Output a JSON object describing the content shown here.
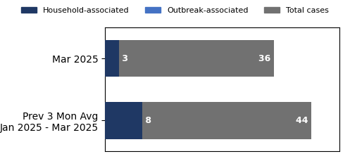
{
  "chart_data": {
    "type": "bar",
    "orientation": "horizontal",
    "stacked": false,
    "data_labels": true,
    "categories": [
      "Mar 2025",
      "Prev 3 Mon Avg\nJan 2025 - Mar 2025"
    ],
    "series": [
      {
        "name": "Household-associated",
        "color": "#1f3864",
        "values": [
          3,
          8
        ]
      },
      {
        "name": "Outbreak-associated",
        "color": "#4472c4",
        "values": [
          null,
          null
        ]
      },
      {
        "name": "Total cases",
        "color": "#717171",
        "values": [
          36,
          44
        ]
      }
    ],
    "xlim": [
      0,
      50
    ],
    "xticks": [],
    "tick_labels": "y",
    "legend": "upper center"
  }
}
